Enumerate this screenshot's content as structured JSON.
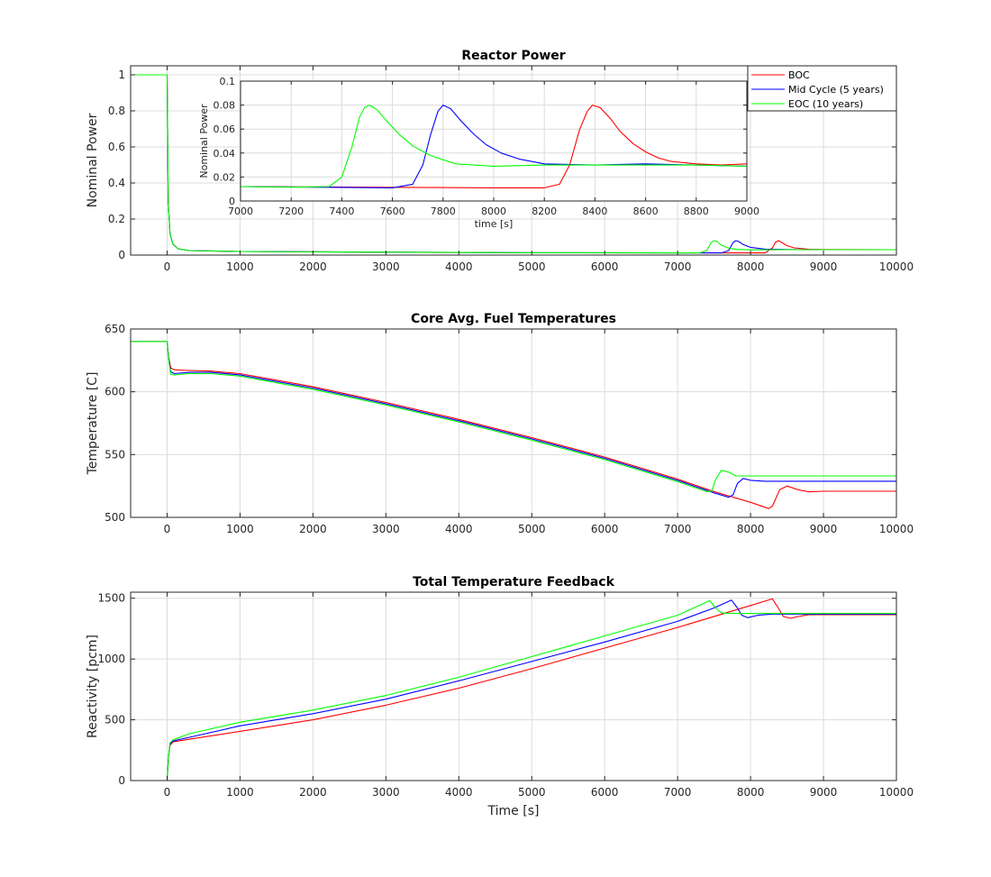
{
  "chart_data": [
    {
      "type": "line",
      "title": "Reactor Power",
      "xlabel": "",
      "ylabel": "Nominal Power",
      "xlim": [
        -500,
        10000
      ],
      "ylim": [
        0,
        1.05
      ],
      "xticks": [
        0,
        1000,
        2000,
        3000,
        4000,
        5000,
        6000,
        7000,
        8000,
        9000,
        10000
      ],
      "yticks": [
        0,
        0.2,
        0.4,
        0.6,
        0.8,
        1
      ],
      "grid": true,
      "legend": "top-right",
      "series": [
        {
          "name": "BOC",
          "color": "#ff0000",
          "x": [
            -500,
            0,
            15,
            40,
            80,
            150,
            300,
            1000,
            3000,
            5000,
            7000,
            8000,
            8200,
            8300,
            8340,
            8380,
            8420,
            8500,
            8600,
            8800,
            9000,
            10000
          ],
          "y": [
            1,
            1,
            0.3,
            0.12,
            0.06,
            0.035,
            0.025,
            0.02,
            0.016,
            0.013,
            0.012,
            0.012,
            0.012,
            0.04,
            0.07,
            0.08,
            0.072,
            0.052,
            0.04,
            0.032,
            0.031,
            0.03
          ]
        },
        {
          "name": "Mid Cycle (5 years)",
          "color": "#0000ff",
          "x": [
            -500,
            0,
            15,
            40,
            80,
            150,
            300,
            1000,
            3000,
            5000,
            7000,
            7600,
            7700,
            7760,
            7800,
            7840,
            7900,
            8000,
            8200,
            8500,
            9000,
            10000
          ],
          "y": [
            1,
            1,
            0.3,
            0.12,
            0.06,
            0.035,
            0.025,
            0.02,
            0.016,
            0.013,
            0.012,
            0.012,
            0.025,
            0.07,
            0.08,
            0.075,
            0.058,
            0.043,
            0.033,
            0.031,
            0.03,
            0.03
          ]
        },
        {
          "name": "EOC (10 years)",
          "color": "#00ff00",
          "x": [
            -500,
            0,
            15,
            40,
            80,
            150,
            300,
            1000,
            3000,
            5000,
            7000,
            7300,
            7400,
            7460,
            7500,
            7540,
            7600,
            7700,
            7800,
            8000,
            8500,
            9000,
            10000
          ],
          "y": [
            1,
            1,
            0.3,
            0.12,
            0.06,
            0.035,
            0.025,
            0.02,
            0.016,
            0.013,
            0.012,
            0.012,
            0.025,
            0.07,
            0.08,
            0.075,
            0.055,
            0.038,
            0.032,
            0.029,
            0.03,
            0.03,
            0.03
          ]
        }
      ]
    },
    {
      "type": "line",
      "title": "Core Avg. Fuel Temperatures",
      "xlabel": "",
      "ylabel": "Temperature [C]",
      "xlim": [
        -500,
        10000
      ],
      "ylim": [
        500,
        650
      ],
      "xticks": [
        0,
        1000,
        2000,
        3000,
        4000,
        5000,
        6000,
        7000,
        8000,
        9000,
        10000
      ],
      "yticks": [
        500,
        550,
        600,
        650
      ],
      "grid": true,
      "series": [
        {
          "name": "BOC",
          "color": "#ff0000",
          "x": [
            -500,
            0,
            20,
            50,
            100,
            300,
            600,
            1000,
            2000,
            3000,
            4000,
            5000,
            6000,
            7000,
            7500,
            8000,
            8250,
            8300,
            8400,
            8500,
            8650,
            8800,
            9000,
            10000
          ],
          "y": [
            640,
            640,
            628,
            619,
            617.5,
            617,
            616.5,
            614.5,
            604,
            591.5,
            578,
            563.5,
            548,
            530.5,
            520.5,
            512,
            507,
            509,
            522,
            525,
            522,
            520.3,
            520.8,
            520.8
          ]
        },
        {
          "name": "Mid Cycle (5 years)",
          "color": "#0000ff",
          "x": [
            -500,
            0,
            20,
            50,
            100,
            300,
            600,
            1000,
            2000,
            3000,
            4000,
            5000,
            6000,
            7000,
            7500,
            7700,
            7760,
            7820,
            7900,
            8000,
            8200,
            9000,
            10000
          ],
          "y": [
            640,
            640,
            627,
            616,
            614.5,
            615.5,
            615.5,
            613.5,
            603,
            590.5,
            577,
            562.5,
            547,
            529.5,
            519.5,
            516,
            518,
            527,
            531,
            529.5,
            528.8,
            528.8,
            528.8
          ]
        },
        {
          "name": "EOC (10 years)",
          "color": "#00ff00",
          "x": [
            -500,
            0,
            20,
            50,
            100,
            300,
            600,
            1000,
            2000,
            3000,
            4000,
            5000,
            6000,
            7000,
            7400,
            7470,
            7520,
            7600,
            7700,
            7800,
            8000,
            9000,
            10000
          ],
          "y": [
            640,
            640,
            626,
            614,
            613.5,
            614.5,
            614.5,
            612.5,
            602,
            589.5,
            576,
            561.5,
            546,
            528.5,
            520.5,
            521,
            530,
            537.5,
            536,
            533,
            533,
            533,
            533
          ]
        }
      ]
    },
    {
      "type": "line",
      "title": "Total Temperature Feedback",
      "xlabel": "Time [s]",
      "ylabel": "Reactivity [pcm]",
      "xlim": [
        -500,
        10000
      ],
      "ylim": [
        0,
        1550
      ],
      "xticks": [
        0,
        1000,
        2000,
        3000,
        4000,
        5000,
        6000,
        7000,
        8000,
        9000,
        10000
      ],
      "yticks": [
        0,
        500,
        1000,
        1500
      ],
      "grid": true,
      "series": [
        {
          "name": "BOC",
          "color": "#ff0000",
          "x": [
            -500,
            0,
            20,
            40,
            80,
            150,
            300,
            1000,
            2000,
            3000,
            4000,
            5000,
            6000,
            7000,
            8000,
            8300,
            8380,
            8450,
            8550,
            8650,
            8800,
            9000,
            10000
          ],
          "y": [
            0,
            0,
            200,
            290,
            318,
            325,
            340,
            405,
            500,
            620,
            760,
            920,
            1090,
            1260,
            1440,
            1495,
            1420,
            1350,
            1335,
            1350,
            1365,
            1365,
            1365
          ]
        },
        {
          "name": "Mid Cycle (5 years)",
          "color": "#0000ff",
          "x": [
            -500,
            0,
            20,
            40,
            80,
            150,
            300,
            1000,
            2000,
            3000,
            4000,
            5000,
            6000,
            7000,
            7500,
            7740,
            7820,
            7880,
            7960,
            8100,
            8300,
            9000,
            10000
          ],
          "y": [
            0,
            0,
            200,
            300,
            325,
            335,
            355,
            450,
            550,
            670,
            820,
            980,
            1140,
            1310,
            1420,
            1485,
            1420,
            1360,
            1340,
            1360,
            1370,
            1370,
            1370
          ]
        },
        {
          "name": "EOC (10 years)",
          "color": "#00ff00",
          "x": [
            -500,
            0,
            20,
            40,
            80,
            150,
            300,
            1000,
            2000,
            3000,
            4000,
            5000,
            6000,
            7000,
            7440,
            7520,
            7600,
            7700,
            7800,
            8000,
            9000,
            10000
          ],
          "y": [
            0,
            0,
            200,
            310,
            335,
            350,
            385,
            480,
            580,
            700,
            850,
            1020,
            1190,
            1360,
            1480,
            1420,
            1380,
            1375,
            1375,
            1375,
            1375,
            1375
          ]
        }
      ]
    },
    {
      "type": "line",
      "title": "",
      "xlabel": "time [s]",
      "ylabel": "Nominal Power",
      "xlim": [
        7000,
        9000
      ],
      "ylim": [
        0,
        0.1
      ],
      "xticks": [
        7000,
        7200,
        7400,
        7600,
        7800,
        8000,
        8200,
        8400,
        8600,
        8800,
        9000
      ],
      "yticks": [
        0,
        0.02,
        0.04,
        0.06,
        0.08,
        0.1
      ],
      "grid": true,
      "series": [
        {
          "name": "BOC",
          "color": "#ff0000",
          "x": [
            7000,
            7500,
            8000,
            8200,
            8260,
            8300,
            8340,
            8370,
            8390,
            8420,
            8460,
            8500,
            8550,
            8600,
            8650,
            8700,
            8800,
            8900,
            9000
          ],
          "y": [
            0.012,
            0.0115,
            0.011,
            0.011,
            0.014,
            0.03,
            0.06,
            0.075,
            0.08,
            0.078,
            0.069,
            0.058,
            0.048,
            0.041,
            0.036,
            0.033,
            0.031,
            0.03,
            0.031
          ]
        },
        {
          "name": "Mid Cycle (5 years)",
          "color": "#0000ff",
          "x": [
            7000,
            7300,
            7600,
            7680,
            7720,
            7750,
            7780,
            7800,
            7830,
            7870,
            7920,
            7970,
            8030,
            8100,
            8200,
            8400,
            8600,
            8800,
            9000
          ],
          "y": [
            0.012,
            0.0115,
            0.011,
            0.014,
            0.03,
            0.055,
            0.075,
            0.08,
            0.077,
            0.067,
            0.056,
            0.047,
            0.04,
            0.035,
            0.031,
            0.03,
            0.031,
            0.03,
            0.029
          ]
        },
        {
          "name": "EOC (10 years)",
          "color": "#00ff00",
          "x": [
            7000,
            7200,
            7350,
            7400,
            7440,
            7470,
            7490,
            7510,
            7540,
            7580,
            7630,
            7680,
            7750,
            7850,
            8000,
            8200,
            8500,
            8800,
            9000
          ],
          "y": [
            0.012,
            0.0115,
            0.012,
            0.02,
            0.045,
            0.07,
            0.078,
            0.08,
            0.076,
            0.066,
            0.055,
            0.046,
            0.038,
            0.031,
            0.029,
            0.03,
            0.03,
            0.03,
            0.029
          ]
        }
      ]
    }
  ]
}
